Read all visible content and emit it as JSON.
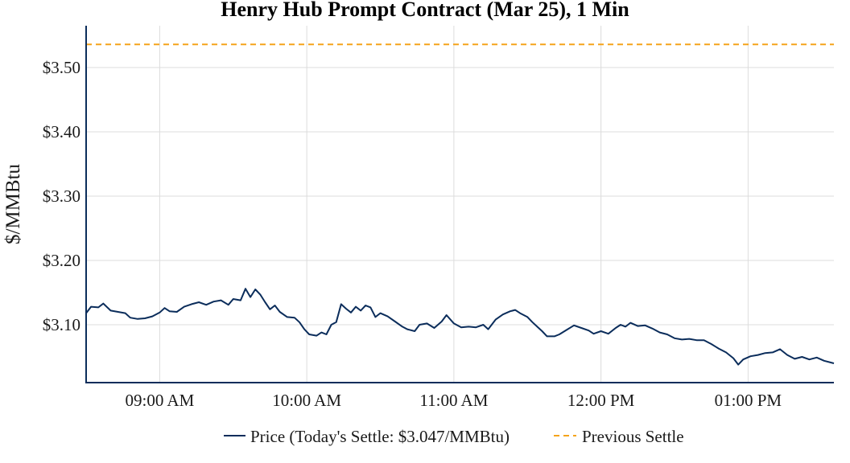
{
  "chart_data": {
    "type": "line",
    "title": "Henry Hub Prompt Contract (Mar 25), 1 Min",
    "xlabel": "",
    "ylabel": "$/MMBtu",
    "x_start": "08:30",
    "x_end": "13:35",
    "xlim": [
      "08:30",
      "13:35"
    ],
    "ylim": [
      3.01,
      3.565
    ],
    "x_ticks": [
      "09:00 AM",
      "10:00 AM",
      "11:00 AM",
      "12:00 PM",
      "01:00 PM"
    ],
    "y_ticks": [
      "$3.10",
      "$3.20",
      "$3.30",
      "$3.40",
      "$3.50"
    ],
    "grid": true,
    "legend_position": "bottom",
    "series": [
      {
        "name": "Price (Today's Settle: $3.047/MMBtu)",
        "color": "#0b2d5b",
        "style": "solid",
        "points": [
          [
            "08:30",
            3.118
          ],
          [
            "08:32",
            3.128
          ],
          [
            "08:35",
            3.127
          ],
          [
            "08:37",
            3.133
          ],
          [
            "08:40",
            3.122
          ],
          [
            "08:43",
            3.12
          ],
          [
            "08:46",
            3.118
          ],
          [
            "08:48",
            3.111
          ],
          [
            "08:51",
            3.109
          ],
          [
            "08:54",
            3.11
          ],
          [
            "08:57",
            3.113
          ],
          [
            "09:00",
            3.119
          ],
          [
            "09:02",
            3.126
          ],
          [
            "09:04",
            3.121
          ],
          [
            "09:07",
            3.12
          ],
          [
            "09:10",
            3.128
          ],
          [
            "09:13",
            3.132
          ],
          [
            "09:16",
            3.135
          ],
          [
            "09:19",
            3.131
          ],
          [
            "09:22",
            3.136
          ],
          [
            "09:25",
            3.138
          ],
          [
            "09:28",
            3.131
          ],
          [
            "09:30",
            3.14
          ],
          [
            "09:33",
            3.138
          ],
          [
            "09:35",
            3.156
          ],
          [
            "09:37",
            3.143
          ],
          [
            "09:39",
            3.155
          ],
          [
            "09:41",
            3.147
          ],
          [
            "09:43",
            3.135
          ],
          [
            "09:45",
            3.124
          ],
          [
            "09:47",
            3.13
          ],
          [
            "09:49",
            3.12
          ],
          [
            "09:52",
            3.112
          ],
          [
            "09:55",
            3.111
          ],
          [
            "09:57",
            3.104
          ],
          [
            "09:59",
            3.093
          ],
          [
            "10:01",
            3.085
          ],
          [
            "10:04",
            3.083
          ],
          [
            "10:06",
            3.088
          ],
          [
            "10:08",
            3.085
          ],
          [
            "10:10",
            3.1
          ],
          [
            "10:12",
            3.104
          ],
          [
            "10:14",
            3.132
          ],
          [
            "10:16",
            3.125
          ],
          [
            "10:18",
            3.119
          ],
          [
            "10:20",
            3.128
          ],
          [
            "10:22",
            3.122
          ],
          [
            "10:24",
            3.13
          ],
          [
            "10:26",
            3.127
          ],
          [
            "10:28",
            3.112
          ],
          [
            "10:30",
            3.118
          ],
          [
            "10:33",
            3.113
          ],
          [
            "10:36",
            3.105
          ],
          [
            "10:39",
            3.097
          ],
          [
            "10:41",
            3.093
          ],
          [
            "10:44",
            3.09
          ],
          [
            "10:46",
            3.1
          ],
          [
            "10:49",
            3.102
          ],
          [
            "10:52",
            3.095
          ],
          [
            "10:55",
            3.105
          ],
          [
            "10:57",
            3.115
          ],
          [
            "11:00",
            3.102
          ],
          [
            "11:03",
            3.096
          ],
          [
            "11:06",
            3.097
          ],
          [
            "11:09",
            3.096
          ],
          [
            "11:12",
            3.1
          ],
          [
            "11:14",
            3.093
          ],
          [
            "11:17",
            3.108
          ],
          [
            "11:20",
            3.116
          ],
          [
            "11:23",
            3.121
          ],
          [
            "11:25",
            3.123
          ],
          [
            "11:27",
            3.118
          ],
          [
            "11:30",
            3.112
          ],
          [
            "11:32",
            3.104
          ],
          [
            "11:34",
            3.097
          ],
          [
            "11:36",
            3.09
          ],
          [
            "11:38",
            3.082
          ],
          [
            "11:41",
            3.082
          ],
          [
            "11:43",
            3.085
          ],
          [
            "11:46",
            3.092
          ],
          [
            "11:49",
            3.099
          ],
          [
            "11:52",
            3.095
          ],
          [
            "11:55",
            3.091
          ],
          [
            "11:57",
            3.086
          ],
          [
            "12:00",
            3.09
          ],
          [
            "12:03",
            3.086
          ],
          [
            "12:06",
            3.095
          ],
          [
            "12:08",
            3.1
          ],
          [
            "12:10",
            3.097
          ],
          [
            "12:12",
            3.103
          ],
          [
            "12:15",
            3.098
          ],
          [
            "12:18",
            3.099
          ],
          [
            "12:21",
            3.094
          ],
          [
            "12:24",
            3.088
          ],
          [
            "12:27",
            3.085
          ],
          [
            "12:30",
            3.079
          ],
          [
            "12:33",
            3.077
          ],
          [
            "12:36",
            3.078
          ],
          [
            "12:39",
            3.076
          ],
          [
            "12:42",
            3.076
          ],
          [
            "12:45",
            3.07
          ],
          [
            "12:48",
            3.063
          ],
          [
            "12:51",
            3.057
          ],
          [
            "12:54",
            3.048
          ],
          [
            "12:56",
            3.038
          ],
          [
            "12:58",
            3.046
          ],
          [
            "13:01",
            3.051
          ],
          [
            "13:04",
            3.053
          ],
          [
            "13:07",
            3.056
          ],
          [
            "13:10",
            3.057
          ],
          [
            "13:13",
            3.062
          ],
          [
            "13:16",
            3.053
          ],
          [
            "13:19",
            3.047
          ],
          [
            "13:22",
            3.05
          ],
          [
            "13:25",
            3.046
          ],
          [
            "13:28",
            3.049
          ],
          [
            "13:31",
            3.044
          ],
          [
            "13:35",
            3.04
          ]
        ]
      },
      {
        "name": "Previous Settle",
        "color": "#f5a31a",
        "style": "dashed",
        "value": 3.536
      }
    ]
  }
}
